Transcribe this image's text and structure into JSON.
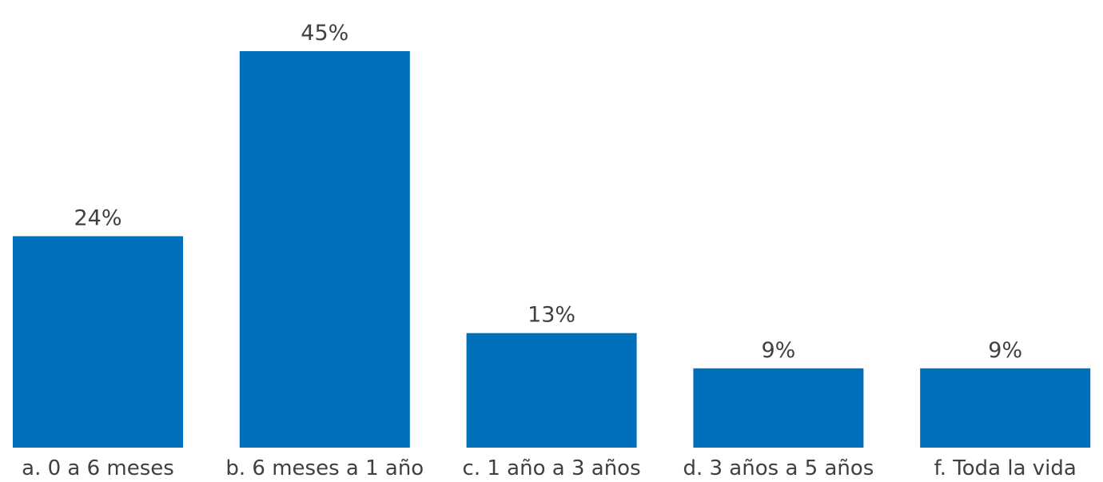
{
  "chart_data": {
    "type": "bar",
    "title": "",
    "xlabel": "",
    "ylabel": "",
    "categories": [
      "a. 0 a 6 meses",
      "b. 6 meses a 1 año",
      "c. 1 año a 3 años",
      "d. 3 años a 5 años",
      "f. Toda la vida"
    ],
    "values": [
      24,
      45,
      13,
      9,
      9
    ],
    "data_labels": [
      "24%",
      "45%",
      "13%",
      "9%",
      "9%"
    ],
    "value_unit": "%",
    "ylim": [
      0,
      45
    ],
    "grid": false,
    "legend": "none",
    "colors": {
      "bar": "#0070BC",
      "text": "#404040",
      "background": "#FFFFFF"
    }
  }
}
